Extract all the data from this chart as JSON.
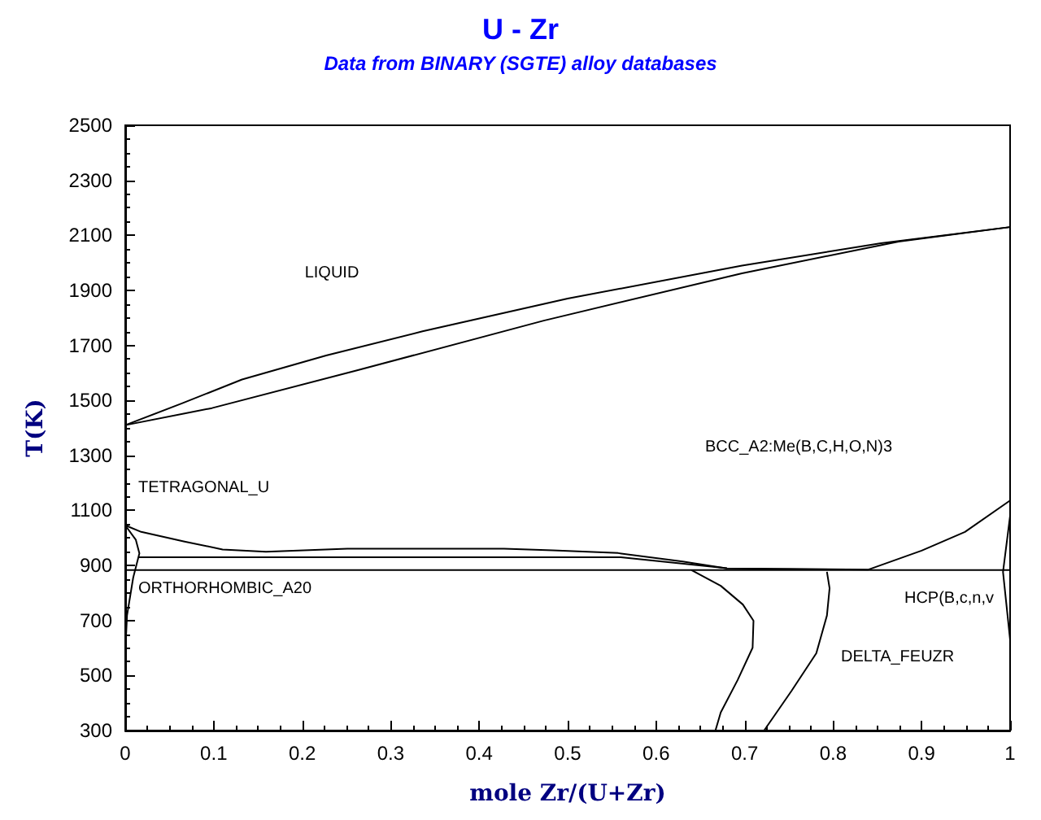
{
  "chart_data": {
    "type": "line",
    "title": "U - Zr",
    "subtitle": "Data from BINARY (SGTE) alloy databases",
    "xlabel": "mole Zr/(U+Zr)",
    "ylabel": "T(K)",
    "xlim": [
      0,
      1
    ],
    "xticks": [
      0,
      0.1,
      0.2,
      0.3,
      0.4,
      0.5,
      0.6,
      0.7,
      0.8,
      0.9,
      1
    ],
    "ylim": [
      300,
      2500
    ],
    "yticks": [
      300,
      500,
      700,
      900,
      1100,
      1300,
      1500,
      1700,
      1900,
      2100,
      2300,
      2500
    ],
    "grid": false,
    "marker": "none",
    "series": [
      {
        "color": "#000000",
        "x": [
          0,
          0.064,
          0.132,
          0.227,
          0.336,
          0.5,
          0.697,
          0.854,
          1
        ],
        "values": [
          1410,
          1489,
          1576,
          1663,
          1751,
          1870,
          1990,
          2071,
          2130
        ]
      },
      {
        "color": "#000000",
        "x": [
          0,
          0.098,
          0.262,
          0.473,
          0.697,
          0.874,
          1
        ],
        "values": [
          1410,
          1472,
          1609,
          1790,
          1962,
          2077,
          2130
        ]
      },
      {
        "color": "#000000",
        "x": [
          0,
          0.018,
          0.067,
          0.11,
          0.159,
          0.251,
          0.428,
          0.483,
          0.557,
          0.63,
          0.68,
          0.75,
          0.84,
          0.9,
          0.949,
          1
        ],
        "values": [
          1046,
          1022,
          987,
          958,
          950,
          961,
          961,
          955,
          945,
          914,
          889,
          888,
          885,
          954,
          1022,
          1136
        ]
      },
      {
        "color": "#000000",
        "x": [
          0.015,
          0.56,
          0.68
        ],
        "values": [
          930,
          930,
          890
        ]
      },
      {
        "color": "#000000",
        "x": [
          0,
          1
        ],
        "values": [
          883,
          883
        ]
      },
      {
        "color": "#000000",
        "x": [
          0.64,
          0.673,
          0.698,
          0.71,
          0.709,
          0.692,
          0.673,
          0.667
        ],
        "values": [
          883,
          826,
          758,
          699,
          601,
          483,
          366,
          300
        ]
      },
      {
        "color": "#000000",
        "x": [
          0.793,
          0.796,
          0.793,
          0.781,
          0.753,
          0.722
        ],
        "values": [
          877,
          817,
          718,
          581,
          444,
          300
        ]
      },
      {
        "color": "#000000",
        "x": [
          0,
          0.012,
          0.016,
          0.009,
          0.002,
          0
        ],
        "values": [
          1046,
          993,
          944,
          856,
          718,
          581
        ]
      },
      {
        "color": "#000000",
        "x": [
          1,
          0.992,
          1
        ],
        "values": [
          1080,
          876,
          630
        ]
      }
    ],
    "annotations": [
      "LIQUID",
      "BCC_A2:Me(B,C,H,O,N)3",
      "TETRAGONAL_U",
      "ORTHORHOMBIC_A20",
      "DELTA_FEUZR",
      "HCP(B,c,n,v"
    ]
  }
}
